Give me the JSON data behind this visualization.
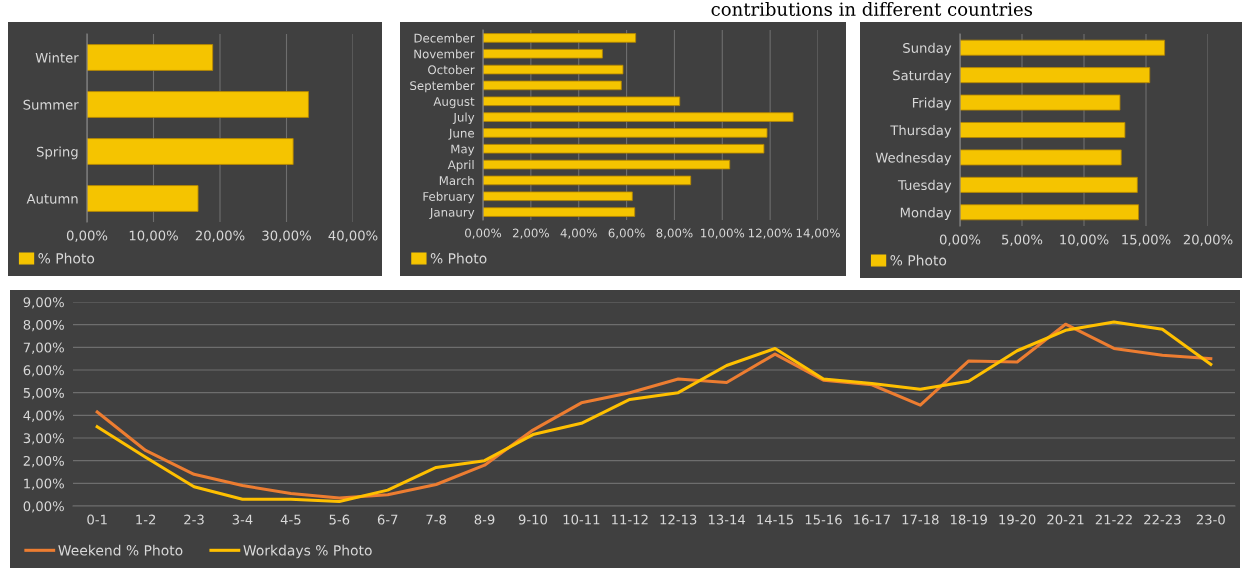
{
  "chart_data": [
    {
      "type": "bar",
      "orientation": "horizontal",
      "categories": [
        "Winter",
        "Summer",
        "Spring",
        "Autumn"
      ],
      "series": [
        {
          "name": "% Photo",
          "color": "#f5c400",
          "values": [
            18.9,
            33.3,
            31.0,
            16.7
          ]
        }
      ],
      "xlim": [
        0,
        40
      ],
      "xticks": [
        {
          "value": 0,
          "label": "0,00%"
        },
        {
          "value": 10,
          "label": "10,00%"
        },
        {
          "value": 20,
          "label": "20,00%"
        },
        {
          "value": 30,
          "label": "30,00%"
        },
        {
          "value": 40,
          "label": "40,00%"
        }
      ],
      "grid": "x",
      "legend": "bottom left"
    },
    {
      "type": "bar",
      "orientation": "horizontal",
      "categories": [
        "December",
        "November",
        "October",
        "September",
        "August",
        "July",
        "June",
        "May",
        "April",
        "March",
        "February",
        "Janaury"
      ],
      "series": [
        {
          "name": "% Photo",
          "color": "#f5c400",
          "values": [
            6.38,
            4.99,
            5.85,
            5.78,
            8.22,
            12.96,
            11.87,
            11.74,
            10.31,
            8.68,
            6.24,
            6.34
          ]
        }
      ],
      "xlim": [
        0,
        14
      ],
      "xticks": [
        {
          "value": 0,
          "label": "0,00%"
        },
        {
          "value": 2,
          "label": "2,00%"
        },
        {
          "value": 4,
          "label": "4,00%"
        },
        {
          "value": 6,
          "label": "6,00%"
        },
        {
          "value": 8,
          "label": "8,00%"
        },
        {
          "value": 10,
          "label": "10,00%"
        },
        {
          "value": 12,
          "label": "12,00%"
        },
        {
          "value": 14,
          "label": "14,00%"
        }
      ],
      "grid": "x",
      "legend": "bottom left",
      "annotations": [
        "contributions in different countries"
      ]
    },
    {
      "type": "bar",
      "orientation": "horizontal",
      "categories": [
        "Sunday",
        "Saturday",
        "Friday",
        "Thursday",
        "Wednesday",
        "Tuesday",
        "Monday"
      ],
      "series": [
        {
          "name": "% Photo",
          "color": "#f5c400",
          "values": [
            16.5,
            15.3,
            12.9,
            13.3,
            13.0,
            14.3,
            14.4
          ]
        }
      ],
      "xlim": [
        0,
        20
      ],
      "xticks": [
        {
          "value": 0,
          "label": "0,00%"
        },
        {
          "value": 5,
          "label": "5,00%"
        },
        {
          "value": 10,
          "label": "10,00%"
        },
        {
          "value": 15,
          "label": "15,00%"
        },
        {
          "value": 20,
          "label": "20,00%"
        }
      ],
      "grid": "x",
      "legend": "bottom left"
    },
    {
      "type": "line",
      "categories": [
        "0-1",
        "1-2",
        "2-3",
        "3-4",
        "4-5",
        "5-6",
        "6-7",
        "7-8",
        "8-9",
        "9-10",
        "10-11",
        "11-12",
        "12-13",
        "13-14",
        "14-15",
        "15-16",
        "16-17",
        "17-18",
        "18-19",
        "19-20",
        "20-21",
        "21-22",
        "22-23",
        "23-0"
      ],
      "series": [
        {
          "name": "Weekend % Photo",
          "color": "#ed7d31",
          "values": [
            4.15,
            2.45,
            1.4,
            0.9,
            0.55,
            0.35,
            0.5,
            0.95,
            1.8,
            3.35,
            4.55,
            5.0,
            5.6,
            5.45,
            6.7,
            5.55,
            5.35,
            4.45,
            6.4,
            6.35,
            8.02,
            6.95,
            6.65,
            6.5
          ]
        },
        {
          "name": "Workdays % Photo",
          "color": "#ffc000",
          "values": [
            3.5,
            2.15,
            0.85,
            0.3,
            0.3,
            0.2,
            0.7,
            1.7,
            2.0,
            3.15,
            3.65,
            4.7,
            5.0,
            6.2,
            6.95,
            5.6,
            5.4,
            5.15,
            5.5,
            6.85,
            7.75,
            8.12,
            7.8,
            6.25
          ]
        }
      ],
      "ylim": [
        0,
        9
      ],
      "yticks": [
        {
          "value": 0,
          "label": "0,00%"
        },
        {
          "value": 1,
          "label": "1,00%"
        },
        {
          "value": 2,
          "label": "2,00%"
        },
        {
          "value": 3,
          "label": "3,00%"
        },
        {
          "value": 4,
          "label": "4,00%"
        },
        {
          "value": 5,
          "label": "5,00%"
        },
        {
          "value": 6,
          "label": "6,00%"
        },
        {
          "value": 7,
          "label": "7,00%"
        },
        {
          "value": 8,
          "label": "8,00%"
        },
        {
          "value": 9,
          "label": "9,00%"
        }
      ],
      "grid": "y",
      "legend": "bottom left",
      "marker": "none",
      "line_style": "solid"
    }
  ]
}
